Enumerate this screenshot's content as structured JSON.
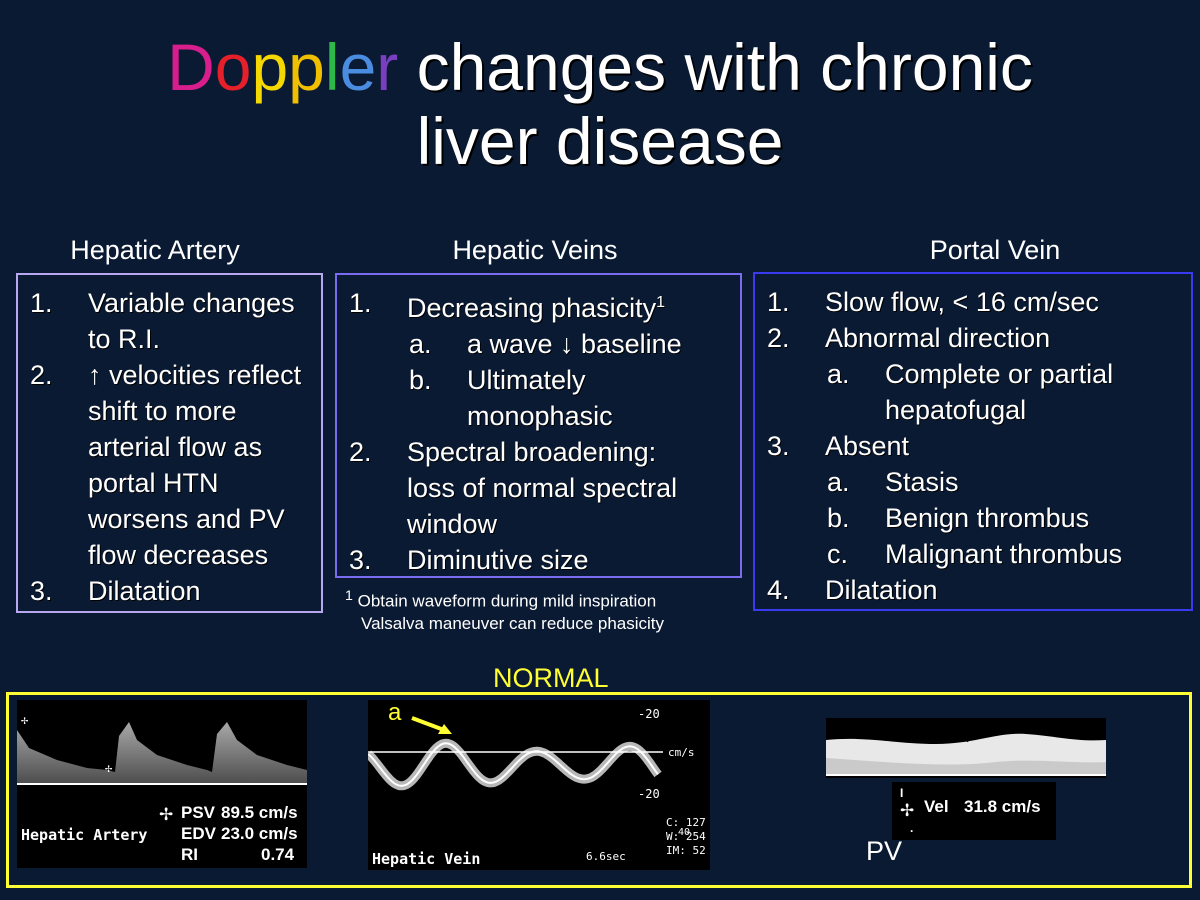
{
  "title": {
    "colored_word": [
      {
        "ch": "D",
        "color": "#d81e8c"
      },
      {
        "ch": "o",
        "color": "#e5202a"
      },
      {
        "ch": "p",
        "color": "#f5d800"
      },
      {
        "ch": "p",
        "color": "#f0c000"
      },
      {
        "ch": "l",
        "color": "#2db84a"
      },
      {
        "ch": "e",
        "color": "#4a8de0"
      },
      {
        "ch": "r",
        "color": "#7a3fc0"
      }
    ],
    "line1_rest": " changes with chronic",
    "line2": "liver disease"
  },
  "sections": {
    "hepatic_artery": {
      "heading": "Hepatic Artery",
      "color": "#b8a8f0",
      "items": [
        {
          "num": "1.",
          "lines": [
            "Variable changes",
            "to R.I."
          ]
        },
        {
          "num": "2.",
          "lines": [
            "↑ velocities reflect",
            "shift to more",
            "arterial flow  as",
            "portal HTN",
            "worsens and  PV",
            "flow decreases"
          ]
        },
        {
          "num": "3.",
          "lines": [
            "Dilatation"
          ]
        }
      ]
    },
    "hepatic_veins": {
      "heading": "Hepatic Veins",
      "color": "#7a6cf0",
      "items": [
        {
          "num": "1.",
          "lines": [
            "Decreasing phasicity"
          ],
          "sup": "1"
        },
        {
          "num": "a.",
          "lines": [
            "a wave ↓ baseline"
          ],
          "sub": true
        },
        {
          "num": "b.",
          "lines": [
            "Ultimately",
            "monophasic"
          ],
          "sub": true
        },
        {
          "num": "2.",
          "lines": [
            "Spectral broadening:",
            "loss of normal spectral",
            "window"
          ]
        },
        {
          "num": "3.",
          "lines": [
            "Diminutive size"
          ]
        }
      ],
      "footnote_num": "1",
      "footnote_line1": "Obtain waveform during mild inspiration",
      "footnote_line2": "Valsalva maneuver can reduce phasicity"
    },
    "portal_vein": {
      "heading": "Portal Vein",
      "color": "#3a3af0",
      "items": [
        {
          "num": "1.",
          "lines": [
            "Slow flow, < 16 cm/sec"
          ]
        },
        {
          "num": "2.",
          "lines": [
            "Abnormal direction"
          ]
        },
        {
          "num": "a.",
          "lines": [
            "Complete or partial",
            "hepatofugal"
          ],
          "sub": true
        },
        {
          "num": "3.",
          "lines": [
            "Absent"
          ]
        },
        {
          "num": "a.",
          "lines": [
            "Stasis"
          ],
          "sub": true
        },
        {
          "num": "b.",
          "lines": [
            "Benign thrombus"
          ],
          "sub": true
        },
        {
          "num": "c.",
          "lines": [
            "Malignant thrombus"
          ],
          "sub": true
        },
        {
          "num": "4.",
          "lines": [
            "Dilatation"
          ]
        }
      ]
    }
  },
  "normal": {
    "label": "NORMAL",
    "ha": {
      "caption": "Hepatic Artery",
      "psv_label": "PSV",
      "psv_value": "89.5 cm/s",
      "edv_label": "EDV",
      "edv_value": "23.0 cm/s",
      "ri_label": "RI",
      "ri_value": "0.74"
    },
    "hv": {
      "caption": "Hepatic Vein",
      "arrow_label": "a",
      "scale_top": "-20",
      "scale_unit": "cm/s",
      "scale_bottom": "-20",
      "time": "6.6sec",
      "c_value": "C: 127",
      "w_value": "W: 254",
      "w_overlay": "40",
      "im_value": "IM: 52"
    },
    "pv": {
      "vel_label": "Vel",
      "vel_value": "31.8 cm/s",
      "caption": "PV"
    }
  }
}
